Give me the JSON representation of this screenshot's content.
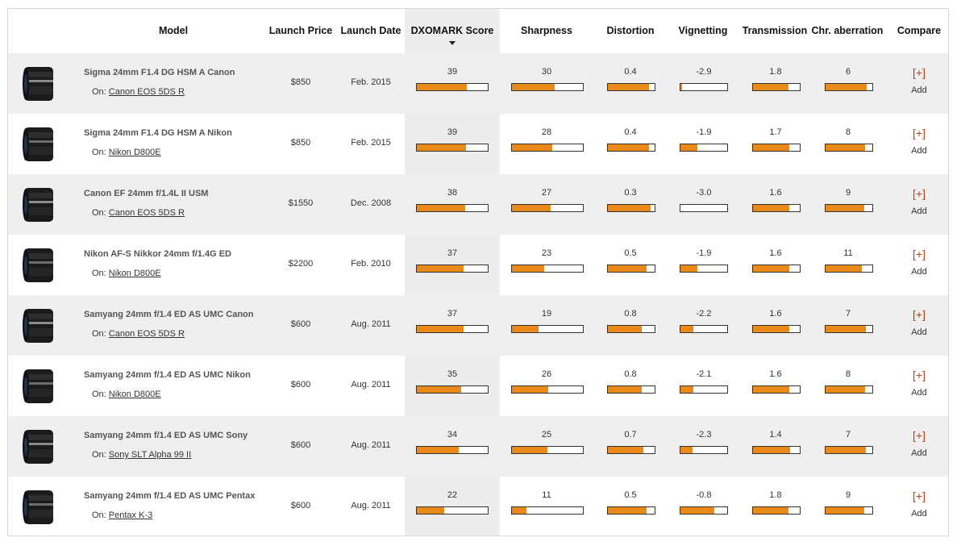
{
  "header": {
    "model": "Model",
    "launch_price": "Launch Price",
    "launch_date": "Launch Date",
    "score": "DXOMARK Score",
    "sharpness": "Sharpness",
    "distortion": "Distortion",
    "vignetting": "Vignetting",
    "transmission": "Transmission",
    "chr_aberration": "Chr. aberration",
    "compare": "Compare"
  },
  "on_prefix": "On:",
  "compare": {
    "plus": "[+]",
    "add": "Add"
  },
  "colors": {
    "bar_fill": "#e8891a",
    "compare_link": "#b5441a",
    "row_alt": "#efefef"
  },
  "rows": [
    {
      "model": "Sigma 24mm F1.4 DG HSM A Canon",
      "on": "Canon EOS 5DS R",
      "price": "$850",
      "date": "Feb. 2015",
      "score": "39",
      "sharpness": "30",
      "distortion": "0.4",
      "vignetting": "-2.9",
      "transmission": "1.8",
      "chr": "6",
      "fills": {
        "score": 0.7,
        "sharpness": 0.6,
        "distortion": 0.88,
        "vignetting": 0.04,
        "transmission": 0.75,
        "chr": 0.88
      }
    },
    {
      "model": "Sigma 24mm F1.4 DG HSM A Nikon",
      "on": "Nikon D800E",
      "price": "$850",
      "date": "Feb. 2015",
      "score": "39",
      "sharpness": "28",
      "distortion": "0.4",
      "vignetting": "-1.9",
      "transmission": "1.7",
      "chr": "8",
      "fills": {
        "score": 0.69,
        "sharpness": 0.57,
        "distortion": 0.88,
        "vignetting": 0.37,
        "transmission": 0.77,
        "chr": 0.85
      }
    },
    {
      "model": "Canon EF 24mm f/1.4L II USM",
      "on": "Canon EOS 5DS R",
      "price": "$1550",
      "date": "Dec. 2008",
      "score": "38",
      "sharpness": "27",
      "distortion": "0.3",
      "vignetting": "-3.0",
      "transmission": "1.6",
      "chr": "9",
      "fills": {
        "score": 0.68,
        "sharpness": 0.54,
        "distortion": 0.92,
        "vignetting": 0.0,
        "transmission": 0.78,
        "chr": 0.83
      }
    },
    {
      "model": "Nikon AF-S Nikkor 24mm f/1.4G ED",
      "on": "Nikon D800E",
      "price": "$2200",
      "date": "Feb. 2010",
      "score": "37",
      "sharpness": "23",
      "distortion": "0.5",
      "vignetting": "-1.9",
      "transmission": "1.6",
      "chr": "11",
      "fills": {
        "score": 0.66,
        "sharpness": 0.46,
        "distortion": 0.82,
        "vignetting": 0.37,
        "transmission": 0.78,
        "chr": 0.78
      }
    },
    {
      "model": "Samyang 24mm f/1.4 ED AS UMC Canon",
      "on": "Canon EOS 5DS R",
      "price": "$600",
      "date": "Aug. 2011",
      "score": "37",
      "sharpness": "19",
      "distortion": "0.8",
      "vignetting": "-2.2",
      "transmission": "1.6",
      "chr": "7",
      "fills": {
        "score": 0.66,
        "sharpness": 0.38,
        "distortion": 0.72,
        "vignetting": 0.27,
        "transmission": 0.78,
        "chr": 0.86
      }
    },
    {
      "model": "Samyang 24mm f/1.4 ED AS UMC Nikon",
      "on": "Nikon D800E",
      "price": "$600",
      "date": "Aug. 2011",
      "score": "35",
      "sharpness": "26",
      "distortion": "0.8",
      "vignetting": "-2.1",
      "transmission": "1.6",
      "chr": "8",
      "fills": {
        "score": 0.63,
        "sharpness": 0.51,
        "distortion": 0.73,
        "vignetting": 0.28,
        "transmission": 0.78,
        "chr": 0.85
      }
    },
    {
      "model": "Samyang 24mm f/1.4 ED AS UMC Sony",
      "on": "Sony SLT Alpha 99 II",
      "price": "$600",
      "date": "Aug. 2011",
      "score": "34",
      "sharpness": "25",
      "distortion": "0.7",
      "vignetting": "-2.3",
      "transmission": "1.4",
      "chr": "7",
      "fills": {
        "score": 0.59,
        "sharpness": 0.5,
        "distortion": 0.75,
        "vignetting": 0.25,
        "transmission": 0.8,
        "chr": 0.86
      }
    },
    {
      "model": "Samyang 24mm f/1.4 ED AS UMC Pentax",
      "on": "Pentax K-3",
      "price": "$600",
      "date": "Aug. 2011",
      "score": "22",
      "sharpness": "11",
      "distortion": "0.5",
      "vignetting": "-0.8",
      "transmission": "1.8",
      "chr": "9",
      "fills": {
        "score": 0.39,
        "sharpness": 0.21,
        "distortion": 0.82,
        "vignetting": 0.73,
        "transmission": 0.75,
        "chr": 0.83
      }
    }
  ]
}
